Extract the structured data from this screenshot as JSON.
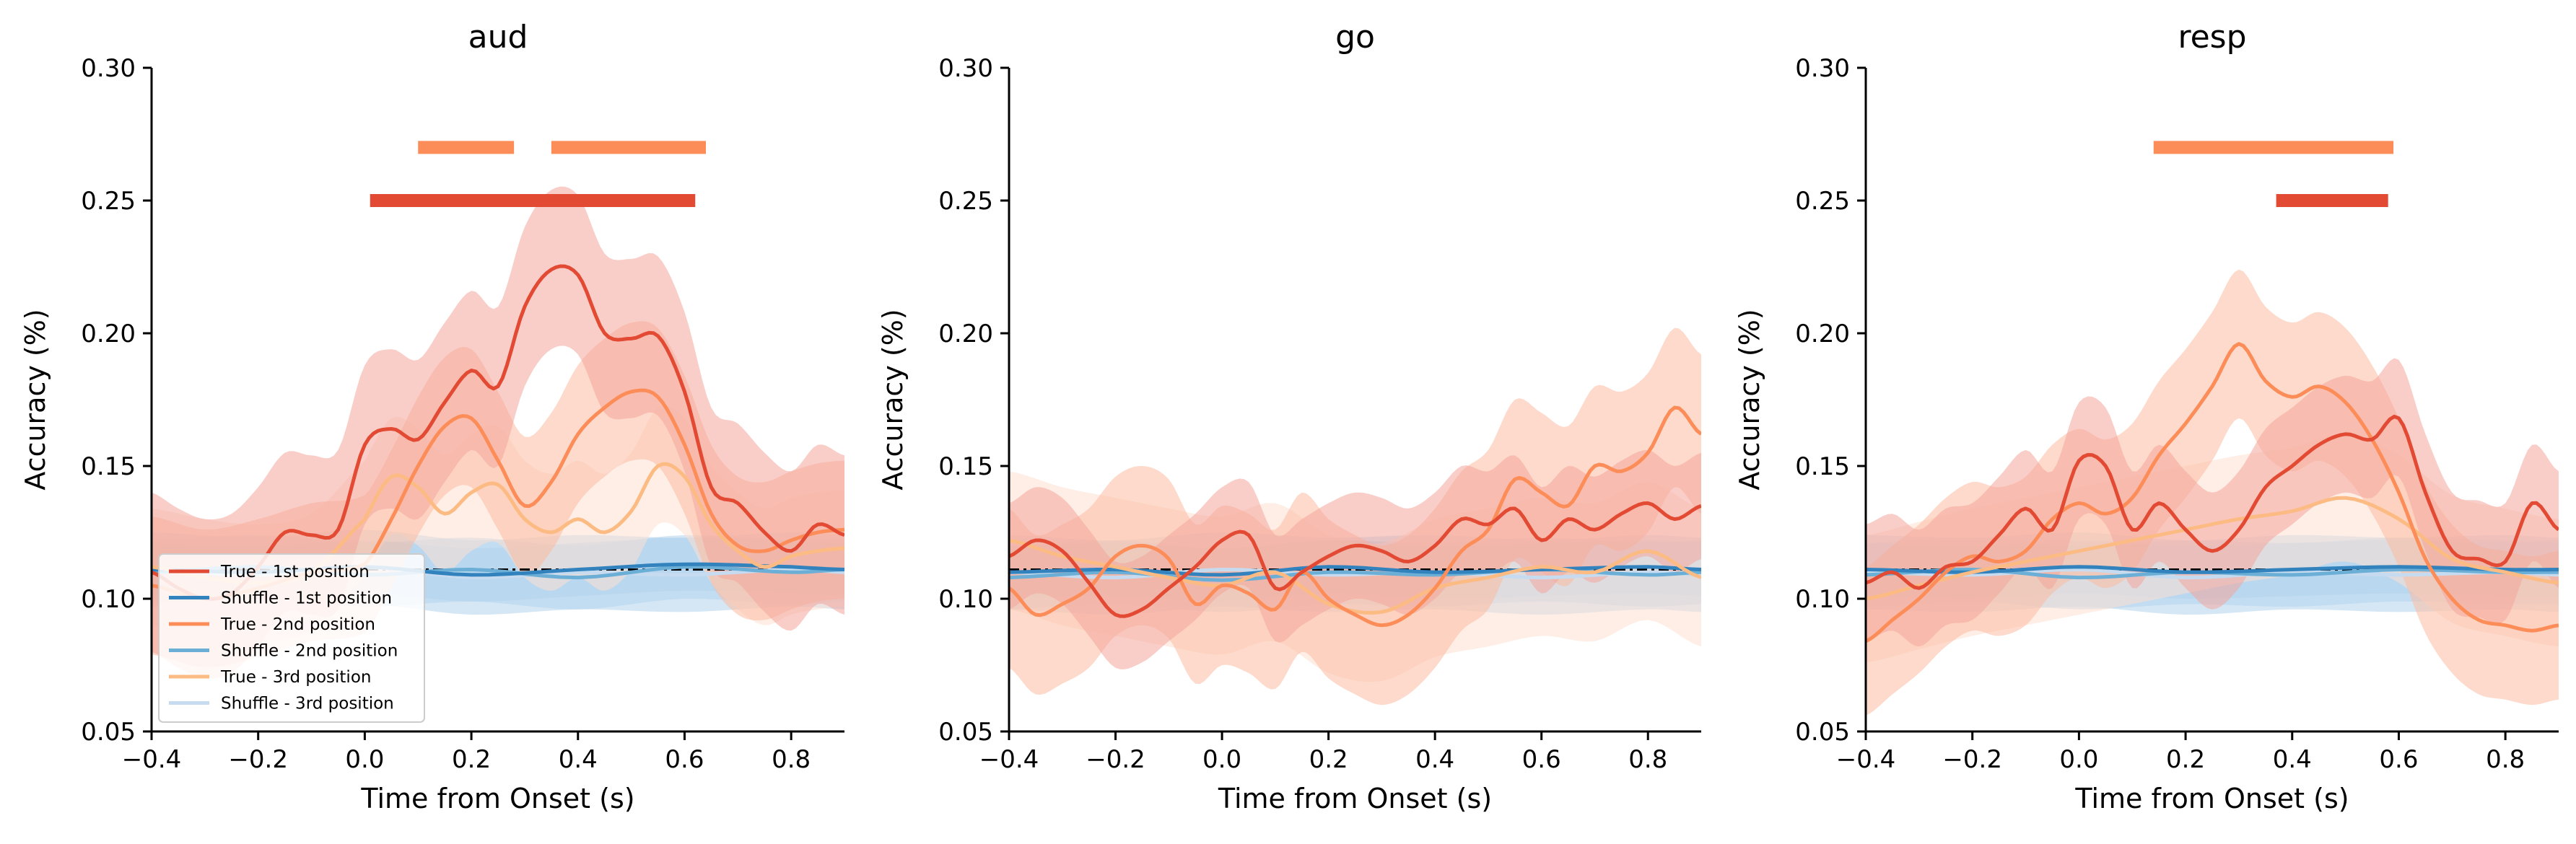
{
  "chart_data": {
    "type": "line",
    "xlabel": "Time from Onset (s)",
    "ylabel": "Accuracy (%)",
    "xlim": [
      -0.4,
      0.9
    ],
    "ylim": [
      0.05,
      0.3
    ],
    "xticks": [
      -0.4,
      -0.2,
      0.0,
      0.2,
      0.4,
      0.6,
      0.8
    ],
    "xtick_labels": [
      "−0.4",
      "−0.2",
      "0.0",
      "0.2",
      "0.4",
      "0.6",
      "0.8"
    ],
    "yticks": [
      0.05,
      0.1,
      0.15,
      0.2,
      0.25,
      0.3
    ],
    "ytick_labels": [
      "0.05",
      "0.10",
      "0.15",
      "0.20",
      "0.25",
      "0.30"
    ],
    "chance_level": 0.111,
    "grid": false,
    "legend": {
      "panel": 0,
      "placement": "lower-left",
      "entries": [
        {
          "label": "True - 1st position",
          "color": "#e34a33"
        },
        {
          "label": "Shuffle - 1st position",
          "color": "#3182bd"
        },
        {
          "label": "True - 2nd position",
          "color": "#fc8d59"
        },
        {
          "label": "Shuffle - 2nd position",
          "color": "#6baed6"
        },
        {
          "label": "True - 3rd position",
          "color": "#fdbb84"
        },
        {
          "label": "Shuffle - 3rd position",
          "color": "#c6dbef"
        }
      ]
    },
    "colors": {
      "true_1": "#e34a33",
      "true_2": "#fc8d59",
      "true_3": "#fdbb84",
      "shuffle_1": "#3182bd",
      "shuffle_2": "#6baed6",
      "shuffle_3": "#c6dbef",
      "band_true_1": "#f4a59a",
      "band_true_2": "#fcbba1",
      "band_true_3": "#fee0d2",
      "band_shuffle": "#b3d3ec",
      "sig_1": "#e34a33",
      "sig_2": "#fc8d59"
    },
    "panels": [
      {
        "title": "aud",
        "series": [
          {
            "key": "shuffle_3",
            "band": 0.014,
            "x": [
              -0.4,
              -0.2,
              0.0,
              0.2,
              0.4,
              0.6,
              0.8,
              0.9
            ],
            "y": [
              0.111,
              0.109,
              0.112,
              0.108,
              0.11,
              0.109,
              0.111,
              0.11
            ]
          },
          {
            "key": "shuffle_2",
            "band": 0.012,
            "x": [
              -0.4,
              -0.2,
              0.0,
              0.2,
              0.4,
              0.6,
              0.8,
              0.9
            ],
            "y": [
              0.11,
              0.112,
              0.109,
              0.111,
              0.108,
              0.112,
              0.11,
              0.111
            ]
          },
          {
            "key": "shuffle_1",
            "band": 0.01,
            "x": [
              -0.4,
              -0.2,
              0.0,
              0.2,
              0.4,
              0.6,
              0.8,
              0.9
            ],
            "y": [
              0.111,
              0.11,
              0.112,
              0.109,
              0.111,
              0.113,
              0.112,
              0.111
            ]
          },
          {
            "key": "true_3",
            "band": 0.022,
            "x": [
              -0.4,
              -0.3,
              -0.2,
              -0.1,
              0.0,
              0.05,
              0.1,
              0.15,
              0.2,
              0.25,
              0.3,
              0.35,
              0.4,
              0.45,
              0.5,
              0.55,
              0.6,
              0.65,
              0.7,
              0.75,
              0.8,
              0.85,
              0.9
            ],
            "y": [
              0.112,
              0.108,
              0.106,
              0.11,
              0.13,
              0.146,
              0.142,
              0.132,
              0.14,
              0.143,
              0.13,
              0.125,
              0.13,
              0.125,
              0.133,
              0.15,
              0.146,
              0.128,
              0.118,
              0.112,
              0.116,
              0.118,
              0.119
            ]
          },
          {
            "key": "true_2",
            "band": 0.026,
            "x": [
              -0.4,
              -0.3,
              -0.2,
              -0.1,
              0.0,
              0.05,
              0.1,
              0.15,
              0.2,
              0.25,
              0.3,
              0.35,
              0.4,
              0.45,
              0.5,
              0.55,
              0.6,
              0.65,
              0.7,
              0.75,
              0.8,
              0.85,
              0.9
            ],
            "y": [
              0.105,
              0.1,
              0.104,
              0.11,
              0.113,
              0.13,
              0.15,
              0.165,
              0.168,
              0.152,
              0.135,
              0.144,
              0.162,
              0.172,
              0.178,
              0.176,
              0.158,
              0.132,
              0.12,
              0.118,
              0.122,
              0.125,
              0.126
            ]
          },
          {
            "key": "true_1",
            "band": 0.03,
            "x": [
              -0.4,
              -0.35,
              -0.3,
              -0.25,
              -0.2,
              -0.15,
              -0.1,
              -0.05,
              0.0,
              0.05,
              0.1,
              0.15,
              0.2,
              0.25,
              0.3,
              0.35,
              0.4,
              0.45,
              0.5,
              0.55,
              0.6,
              0.65,
              0.7,
              0.75,
              0.8,
              0.85,
              0.9
            ],
            "y": [
              0.11,
              0.104,
              0.1,
              0.102,
              0.112,
              0.125,
              0.124,
              0.126,
              0.158,
              0.164,
              0.16,
              0.174,
              0.186,
              0.18,
              0.21,
              0.224,
              0.222,
              0.2,
              0.198,
              0.199,
              0.178,
              0.142,
              0.136,
              0.125,
              0.118,
              0.128,
              0.124
            ]
          }
        ],
        "significance": [
          {
            "color_key": "sig_2",
            "y": 0.27,
            "segments": [
              [
                0.1,
                0.28
              ],
              [
                0.35,
                0.64
              ]
            ]
          },
          {
            "color_key": "sig_1",
            "y": 0.25,
            "segments": [
              [
                0.01,
                0.62
              ]
            ]
          }
        ]
      },
      {
        "title": "go",
        "series": [
          {
            "key": "shuffle_3",
            "band": 0.014,
            "x": [
              -0.4,
              -0.2,
              0.0,
              0.2,
              0.4,
              0.6,
              0.8,
              0.9
            ],
            "y": [
              0.11,
              0.108,
              0.111,
              0.109,
              0.11,
              0.108,
              0.11,
              0.109
            ]
          },
          {
            "key": "shuffle_2",
            "band": 0.012,
            "x": [
              -0.4,
              -0.2,
              0.0,
              0.2,
              0.4,
              0.6,
              0.8,
              0.9
            ],
            "y": [
              0.108,
              0.11,
              0.107,
              0.11,
              0.109,
              0.111,
              0.109,
              0.11
            ]
          },
          {
            "key": "shuffle_1",
            "band": 0.01,
            "x": [
              -0.4,
              -0.2,
              0.0,
              0.2,
              0.4,
              0.6,
              0.8,
              0.9
            ],
            "y": [
              0.11,
              0.111,
              0.109,
              0.112,
              0.11,
              0.111,
              0.112,
              0.111
            ]
          },
          {
            "key": "true_3",
            "band": 0.026,
            "x": [
              -0.4,
              -0.3,
              -0.2,
              -0.1,
              0.0,
              0.1,
              0.2,
              0.3,
              0.4,
              0.5,
              0.6,
              0.7,
              0.8,
              0.9
            ],
            "y": [
              0.122,
              0.116,
              0.112,
              0.108,
              0.105,
              0.11,
              0.098,
              0.095,
              0.104,
              0.108,
              0.112,
              0.11,
              0.118,
              0.108
            ]
          },
          {
            "key": "true_2",
            "band": 0.03,
            "x": [
              -0.4,
              -0.35,
              -0.3,
              -0.25,
              -0.2,
              -0.15,
              -0.1,
              -0.05,
              0.0,
              0.05,
              0.1,
              0.15,
              0.2,
              0.25,
              0.3,
              0.35,
              0.4,
              0.45,
              0.5,
              0.55,
              0.6,
              0.65,
              0.7,
              0.75,
              0.8,
              0.85,
              0.9
            ],
            "y": [
              0.104,
              0.094,
              0.098,
              0.104,
              0.116,
              0.12,
              0.115,
              0.098,
              0.105,
              0.102,
              0.096,
              0.11,
              0.1,
              0.094,
              0.09,
              0.094,
              0.104,
              0.118,
              0.126,
              0.145,
              0.14,
              0.135,
              0.15,
              0.148,
              0.155,
              0.172,
              0.162
            ]
          },
          {
            "key": "true_1",
            "band": 0.02,
            "x": [
              -0.4,
              -0.35,
              -0.3,
              -0.25,
              -0.2,
              -0.15,
              -0.1,
              -0.05,
              0.0,
              0.05,
              0.1,
              0.15,
              0.2,
              0.25,
              0.3,
              0.35,
              0.4,
              0.45,
              0.5,
              0.55,
              0.6,
              0.65,
              0.7,
              0.75,
              0.8,
              0.85,
              0.9
            ],
            "y": [
              0.116,
              0.122,
              0.118,
              0.106,
              0.094,
              0.096,
              0.104,
              0.112,
              0.122,
              0.124,
              0.104,
              0.11,
              0.116,
              0.12,
              0.118,
              0.114,
              0.12,
              0.13,
              0.128,
              0.134,
              0.122,
              0.13,
              0.126,
              0.132,
              0.136,
              0.13,
              0.135
            ]
          }
        ],
        "significance": []
      },
      {
        "title": "resp",
        "series": [
          {
            "key": "shuffle_3",
            "band": 0.014,
            "x": [
              -0.4,
              -0.2,
              0.0,
              0.2,
              0.4,
              0.6,
              0.8,
              0.9
            ],
            "y": [
              0.11,
              0.109,
              0.111,
              0.108,
              0.11,
              0.109,
              0.11,
              0.109
            ]
          },
          {
            "key": "shuffle_2",
            "band": 0.012,
            "x": [
              -0.4,
              -0.2,
              0.0,
              0.2,
              0.4,
              0.6,
              0.8,
              0.9
            ],
            "y": [
              0.109,
              0.111,
              0.108,
              0.11,
              0.109,
              0.111,
              0.11,
              0.11
            ]
          },
          {
            "key": "shuffle_1",
            "band": 0.01,
            "x": [
              -0.4,
              -0.2,
              0.0,
              0.2,
              0.4,
              0.6,
              0.8,
              0.9
            ],
            "y": [
              0.111,
              0.11,
              0.112,
              0.11,
              0.111,
              0.112,
              0.111,
              0.111
            ]
          },
          {
            "key": "true_3",
            "band": 0.024,
            "x": [
              -0.4,
              -0.3,
              -0.2,
              -0.1,
              0.0,
              0.1,
              0.2,
              0.3,
              0.4,
              0.5,
              0.6,
              0.7,
              0.8,
              0.9
            ],
            "y": [
              0.1,
              0.105,
              0.11,
              0.114,
              0.118,
              0.122,
              0.126,
              0.13,
              0.133,
              0.138,
              0.13,
              0.115,
              0.11,
              0.106
            ]
          },
          {
            "key": "true_2",
            "band": 0.028,
            "x": [
              -0.4,
              -0.35,
              -0.3,
              -0.25,
              -0.2,
              -0.15,
              -0.1,
              -0.05,
              0.0,
              0.05,
              0.1,
              0.15,
              0.2,
              0.25,
              0.3,
              0.35,
              0.4,
              0.45,
              0.5,
              0.55,
              0.6,
              0.65,
              0.7,
              0.75,
              0.8,
              0.85,
              0.9
            ],
            "y": [
              0.084,
              0.092,
              0.1,
              0.11,
              0.116,
              0.114,
              0.118,
              0.13,
              0.136,
              0.132,
              0.138,
              0.154,
              0.166,
              0.18,
              0.196,
              0.182,
              0.176,
              0.18,
              0.174,
              0.16,
              0.14,
              0.115,
              0.1,
              0.092,
              0.09,
              0.088,
              0.09
            ]
          },
          {
            "key": "true_1",
            "band": 0.022,
            "x": [
              -0.4,
              -0.35,
              -0.3,
              -0.25,
              -0.2,
              -0.15,
              -0.1,
              -0.05,
              0.0,
              0.05,
              0.1,
              0.15,
              0.2,
              0.25,
              0.3,
              0.35,
              0.4,
              0.45,
              0.5,
              0.55,
              0.6,
              0.65,
              0.7,
              0.75,
              0.8,
              0.85,
              0.9
            ],
            "y": [
              0.106,
              0.11,
              0.104,
              0.112,
              0.114,
              0.124,
              0.134,
              0.126,
              0.152,
              0.15,
              0.126,
              0.136,
              0.126,
              0.118,
              0.126,
              0.142,
              0.15,
              0.158,
              0.162,
              0.16,
              0.168,
              0.14,
              0.118,
              0.115,
              0.114,
              0.136,
              0.126
            ]
          }
        ],
        "significance": [
          {
            "color_key": "sig_2",
            "y": 0.27,
            "segments": [
              [
                0.14,
                0.59
              ]
            ]
          },
          {
            "color_key": "sig_1",
            "y": 0.25,
            "segments": [
              [
                0.37,
                0.58
              ]
            ]
          }
        ]
      }
    ]
  }
}
